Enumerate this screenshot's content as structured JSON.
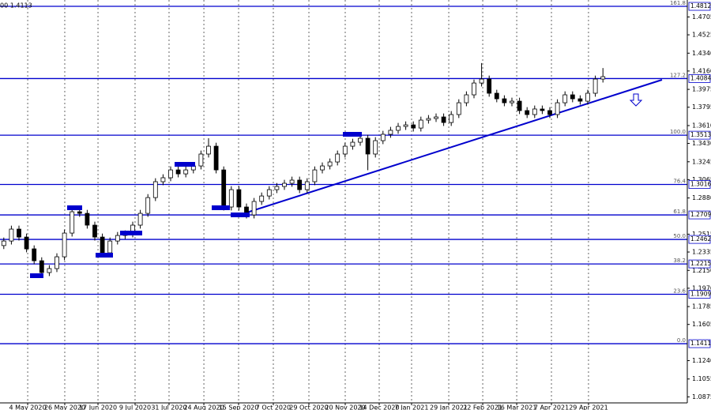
{
  "chart_data": {
    "type": "candlestick",
    "title": "00 1.4113",
    "xlim": [
      -0.5,
      90.125
    ],
    "ylim": [
      1.0814,
      1.4876
    ],
    "xticks": [
      {
        "value": 3.15,
        "label": "4 May 2020"
      },
      {
        "value": 8.04,
        "label": "26 May 2020"
      },
      {
        "value": 12.42,
        "label": "17 Jun 2020"
      },
      {
        "value": 17.31,
        "label": "9 Jul 2020"
      },
      {
        "value": 21.79,
        "label": "31 Jul 2020"
      },
      {
        "value": 26.38,
        "label": "24 Aug 2020"
      },
      {
        "value": 30.96,
        "label": "15 Sep 2020"
      },
      {
        "value": 35.54,
        "label": "7 Oct 2020"
      },
      {
        "value": 40.23,
        "label": "29 Oct 2020"
      },
      {
        "value": 45.02,
        "label": "20 Nov 2020"
      },
      {
        "value": 49.5,
        "label": "14 Dec 2020"
      },
      {
        "value": 53.77,
        "label": "7 Jan 2021"
      },
      {
        "value": 58.67,
        "label": "29 Jan 2021"
      },
      {
        "value": 63.15,
        "label": "22 Feb 2021"
      },
      {
        "value": 67.63,
        "label": "16 Mar 2021"
      },
      {
        "value": 72.21,
        "label": "7 Apr 2021"
      },
      {
        "value": 77.1,
        "label": "29 Apr 2021"
      }
    ],
    "yticks": [
      1.4705,
      1.4525,
      {
        "value": 1.434,
        "label": "1.4340"
      },
      {
        "value": 1.416,
        "label": "1.4160"
      },
      1.3975,
      1.3795,
      {
        "value": 1.361,
        "label": "1.3610"
      },
      {
        "value": 1.343,
        "label": "1.3430"
      },
      1.3245,
      1.3065,
      {
        "value": 1.288,
        "label": "1.2880"
      },
      1.2515,
      1.2335,
      {
        "value": 1.215,
        "label": "1.2150"
      },
      {
        "value": 1.197,
        "label": "1.1970"
      },
      1.1785,
      1.1605,
      {
        "value": 1.124,
        "label": "1.1240"
      },
      1.1055,
      1.0875
    ],
    "grid": true,
    "levels": [
      {
        "label": "161.8",
        "value": 1.4812
      },
      {
        "label": "127.2",
        "value": 1.4084
      },
      {
        "label": "100.0",
        "value": 1.3513
      },
      {
        "label": "76.4",
        "value": 1.3016
      },
      {
        "label": "61.8",
        "value": 1.2709
      },
      {
        "label": "50.0",
        "value": 1.2462
      },
      {
        "label": "38.2",
        "value": 1.2215
      },
      {
        "label": "23.6",
        "value": 1.1909
      },
      {
        "label": "0.0",
        "value": 1.1411
      }
    ],
    "level_color": "#0000cd",
    "up_color": "#ffffff",
    "down_color": "#000000",
    "open": [
      1.24,
      1.2446,
      1.2566,
      1.2486,
      1.2367,
      1.2247,
      1.2128,
      1.2168,
      1.2287,
      1.2526,
      1.2741,
      1.2725,
      1.2606,
      1.2486,
      1.2327,
      1.2446,
      1.2502,
      1.2518,
      1.2606,
      1.2725,
      1.2884,
      1.3044,
      1.3084,
      1.3163,
      1.3123,
      1.3163,
      1.3203,
      1.3323,
      1.3402,
      1.3163,
      1.2789,
      1.2964,
      1.2789,
      1.2709,
      1.2845,
      1.29,
      1.2964,
      1.2996,
      1.3028,
      1.306,
      1.2964,
      1.3044,
      1.3163,
      1.3203,
      1.3243,
      1.3323,
      1.3402,
      1.3442,
      1.3482,
      1.3323,
      1.3458,
      1.3522,
      1.3562,
      1.3601,
      1.3617,
      1.3585,
      1.3665,
      1.3681,
      1.3697,
      1.3641,
      1.3721,
      1.384,
      1.392,
      1.4039,
      1.4079,
      1.3936,
      1.388,
      1.384,
      1.3856,
      1.3761,
      1.3721,
      1.3777,
      1.3761,
      1.3721,
      1.384,
      1.392,
      1.388,
      1.3856,
      1.3936,
      1.4079
    ],
    "high": [
      1.2481,
      1.2601,
      1.2601,
      1.2521,
      1.2402,
      1.2282,
      1.2203,
      1.2322,
      1.2561,
      1.2776,
      1.2776,
      1.276,
      1.2641,
      1.2521,
      1.2481,
      1.2537,
      1.2553,
      1.2641,
      1.276,
      1.2919,
      1.3079,
      1.3119,
      1.3198,
      1.3198,
      1.3198,
      1.3238,
      1.3358,
      1.3482,
      1.3437,
      1.3198,
      1.2999,
      1.2999,
      1.2824,
      1.288,
      1.2935,
      1.2999,
      1.3031,
      1.3063,
      1.3095,
      1.3095,
      1.3079,
      1.3198,
      1.3238,
      1.3278,
      1.3358,
      1.3437,
      1.3477,
      1.3517,
      1.3517,
      1.3493,
      1.3557,
      1.3597,
      1.3636,
      1.3652,
      1.3652,
      1.37,
      1.3716,
      1.3732,
      1.3732,
      1.3756,
      1.3875,
      1.3955,
      1.4074,
      1.424,
      1.4114,
      1.3971,
      1.3915,
      1.3891,
      1.3891,
      1.3796,
      1.3812,
      1.3812,
      1.3796,
      1.3875,
      1.3955,
      1.3955,
      1.3915,
      1.3971,
      1.4114,
      1.419
    ],
    "low": [
      1.2365,
      1.2411,
      1.2451,
      1.2332,
      1.2212,
      1.2093,
      1.2093,
      1.2133,
      1.2252,
      1.2491,
      1.269,
      1.2571,
      1.2451,
      1.2292,
      1.2292,
      1.2411,
      1.2467,
      1.2483,
      1.2571,
      1.269,
      1.2849,
      1.3009,
      1.3049,
      1.3088,
      1.3088,
      1.3128,
      1.3168,
      1.3288,
      1.3128,
      1.2754,
      1.2754,
      1.2754,
      1.2674,
      1.2674,
      1.281,
      1.2865,
      1.2929,
      1.2961,
      1.2993,
      1.2929,
      1.2929,
      1.3009,
      1.3128,
      1.3168,
      1.3208,
      1.3288,
      1.3367,
      1.3407,
      1.316,
      1.3288,
      1.3423,
      1.3487,
      1.3527,
      1.3566,
      1.355,
      1.355,
      1.363,
      1.3646,
      1.3606,
      1.3606,
      1.3686,
      1.3805,
      1.3885,
      1.4004,
      1.3901,
      1.3845,
      1.3805,
      1.3805,
      1.3726,
      1.3686,
      1.3686,
      1.3726,
      1.3686,
      1.3686,
      1.3805,
      1.3845,
      1.3821,
      1.3821,
      1.3901,
      1.4044
    ],
    "close": [
      1.2446,
      1.2566,
      1.2486,
      1.2367,
      1.2247,
      1.2128,
      1.2168,
      1.2287,
      1.2526,
      1.2741,
      1.2725,
      1.2606,
      1.2486,
      1.2327,
      1.2446,
      1.2502,
      1.2518,
      1.2606,
      1.2725,
      1.2884,
      1.3044,
      1.3084,
      1.3163,
      1.3123,
      1.3163,
      1.3203,
      1.3323,
      1.3402,
      1.3163,
      1.2789,
      1.2964,
      1.2789,
      1.2709,
      1.2845,
      1.29,
      1.2964,
      1.2996,
      1.3028,
      1.306,
      1.2964,
      1.3044,
      1.3163,
      1.3203,
      1.3243,
      1.3323,
      1.3402,
      1.3442,
      1.3482,
      1.3323,
      1.3458,
      1.3522,
      1.3562,
      1.3601,
      1.3617,
      1.3585,
      1.3665,
      1.3681,
      1.3697,
      1.3641,
      1.3721,
      1.384,
      1.392,
      1.4039,
      1.4079,
      1.3936,
      1.388,
      1.384,
      1.3856,
      1.3761,
      1.3721,
      1.3777,
      1.3761,
      1.3721,
      1.384,
      1.392,
      1.388,
      1.3856,
      1.3936,
      1.4079,
      1.4103
    ]
  }
}
